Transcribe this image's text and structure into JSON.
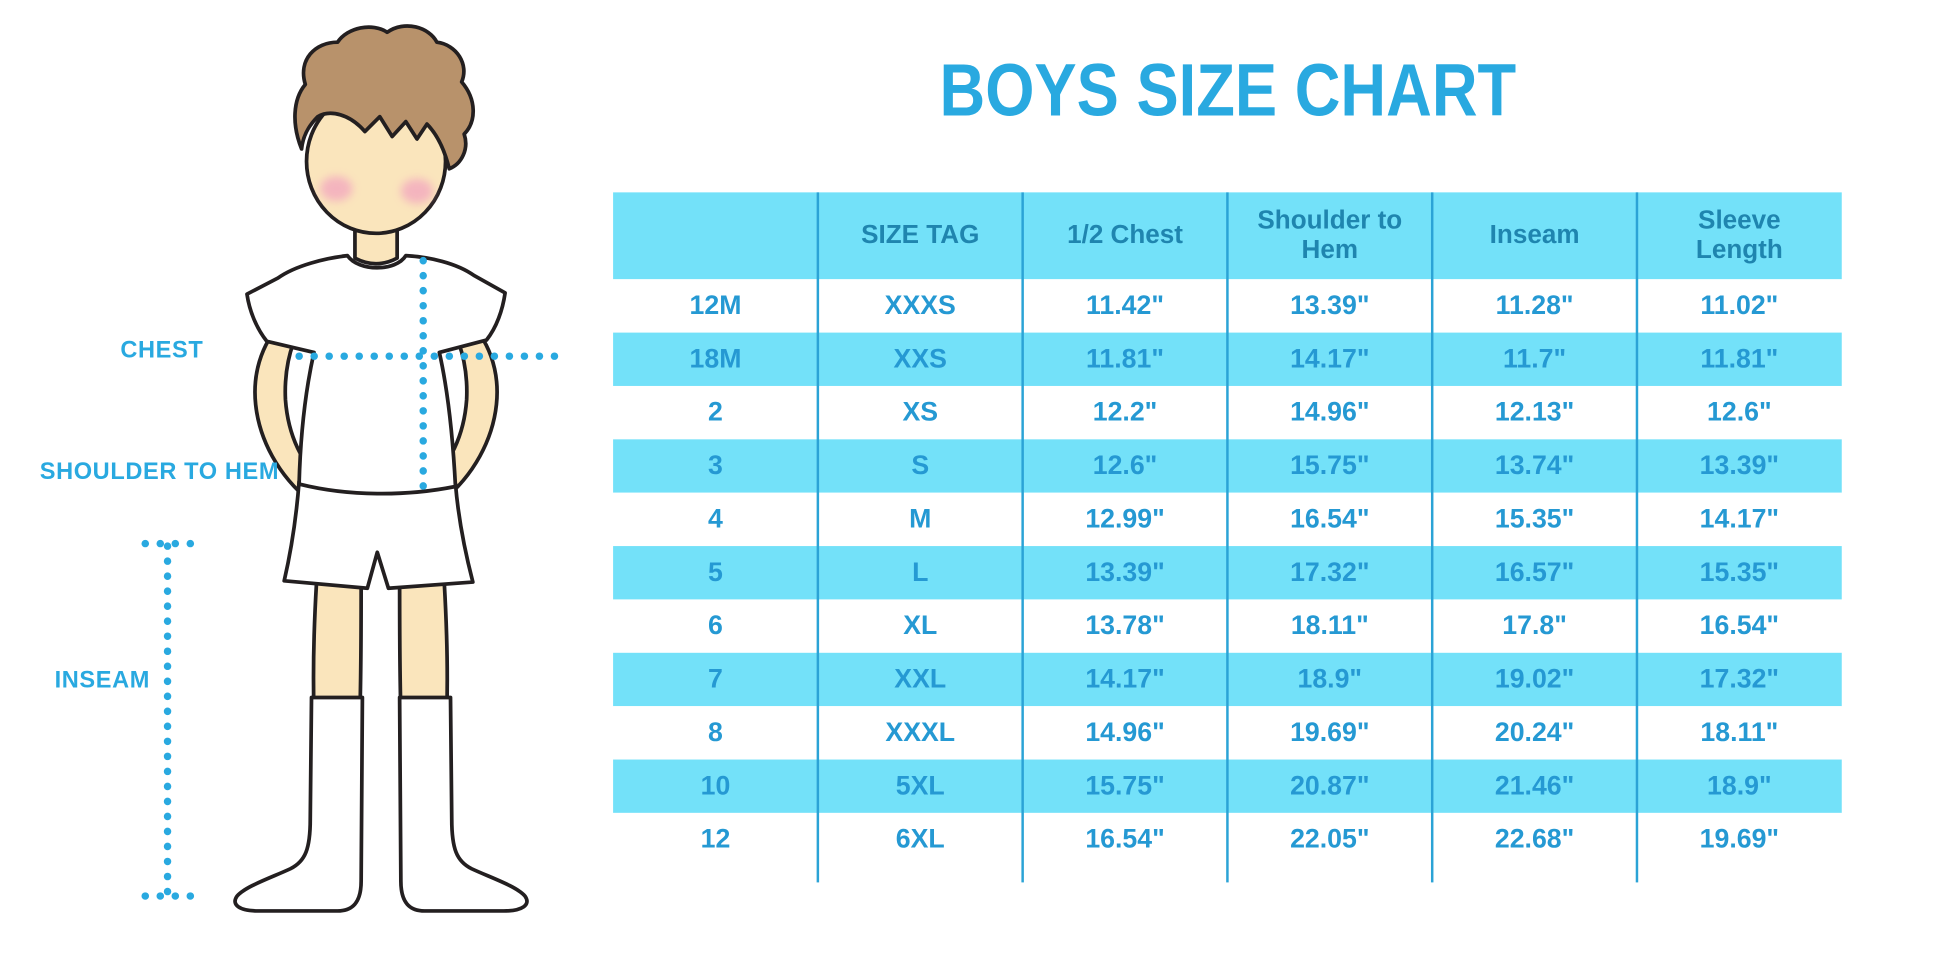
{
  "title": "BOYS SIZE CHART",
  "measurement_labels": {
    "chest": "CHEST",
    "shoulder_to_hem": "SHOULDER TO HEM",
    "inseam": "INSEAM"
  },
  "chart_data": {
    "type": "table",
    "title": "BOYS SIZE CHART",
    "columns": [
      "",
      "SIZE TAG",
      "1/2 Chest",
      "Shoulder to Hem",
      "Inseam",
      "Sleeve Length"
    ],
    "rows": [
      [
        "12M",
        "XXXS",
        "11.42\"",
        "13.39\"",
        "11.28\"",
        "11.02\""
      ],
      [
        "18M",
        "XXS",
        "11.81\"",
        "14.17\"",
        "11.7\"",
        "11.81\""
      ],
      [
        "2",
        "XS",
        "12.2\"",
        "14.96\"",
        "12.13\"",
        "12.6\""
      ],
      [
        "3",
        "S",
        "12.6\"",
        "15.75\"",
        "13.74\"",
        "13.39\""
      ],
      [
        "4",
        "M",
        "12.99\"",
        "16.54\"",
        "15.35\"",
        "14.17\""
      ],
      [
        "5",
        "L",
        "13.39\"",
        "17.32\"",
        "16.57\"",
        "15.35\""
      ],
      [
        "6",
        "XL",
        "13.78\"",
        "18.11\"",
        "17.8\"",
        "16.54\""
      ],
      [
        "7",
        "XXL",
        "14.17\"",
        "18.9\"",
        "19.02\"",
        "17.32\""
      ],
      [
        "8",
        "XXXL",
        "14.96\"",
        "19.69\"",
        "20.24\"",
        "18.11\""
      ],
      [
        "10",
        "5XL",
        "15.75\"",
        "20.87\"",
        "21.46\"",
        "18.9\""
      ],
      [
        "12",
        "6XL",
        "16.54\"",
        "22.05\"",
        "22.68\"",
        "19.69\""
      ]
    ],
    "layout": {
      "row_stripes": "alternating white and cyan, first data row white",
      "grid": "vertical column dividers only, extending slightly below last row"
    }
  },
  "colors": {
    "accent_blue": "#29A9E0",
    "stripe_cyan": "#73E1F9",
    "header_text": "#1F85AF",
    "cell_text": "#2599D3",
    "divider_blue": "#2BA3D6",
    "dotted_line_blue": "#29A9E0",
    "skin": "#FAE5BC",
    "hair_brown": "#B8926B",
    "cheek_pink": "#F3A9BF",
    "outline": "#231F20"
  }
}
